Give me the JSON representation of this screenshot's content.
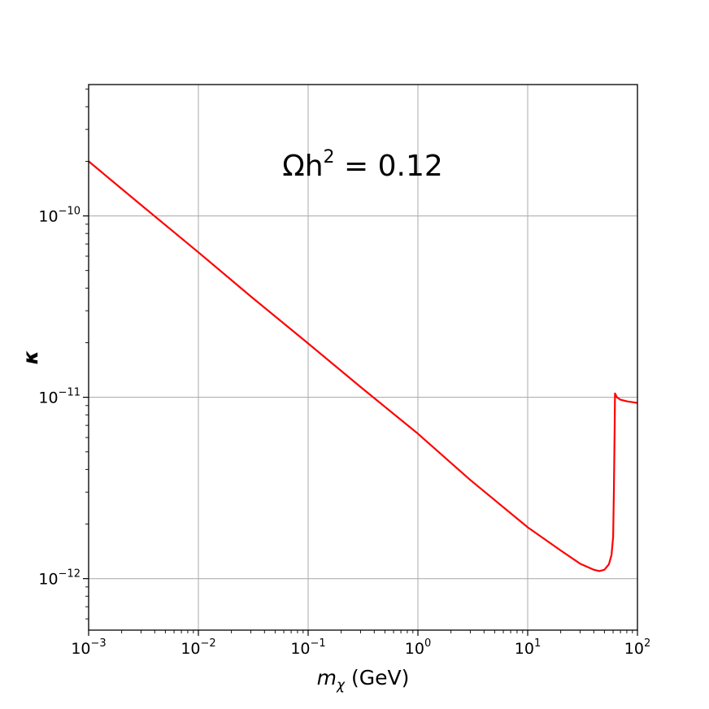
{
  "chart_data": {
    "type": "line",
    "xscale": "log",
    "yscale": "log",
    "xlim": [
      0.001,
      100
    ],
    "ylim": [
      5.2e-13,
      5.3e-10
    ],
    "grid": true,
    "line_color": "#ff0000",
    "grid_color": "#b0b0b0",
    "xlabel": {
      "base": "m",
      "sub": "χ",
      "unit": " (GeV)"
    },
    "ylabel": "κ",
    "annotation": {
      "lead": "Ωh",
      "sup": "2",
      "tail": " = 0.12"
    },
    "xticks": [
      {
        "value": 0.001,
        "base": "10",
        "exp": "−3"
      },
      {
        "value": 0.01,
        "base": "10",
        "exp": "−2"
      },
      {
        "value": 0.1,
        "base": "10",
        "exp": "−1"
      },
      {
        "value": 1,
        "base": "10",
        "exp": "0"
      },
      {
        "value": 10,
        "base": "10",
        "exp": "1"
      },
      {
        "value": 100,
        "base": "10",
        "exp": "2"
      }
    ],
    "yticks": [
      {
        "value": 1e-12,
        "base": "10",
        "exp": "−12"
      },
      {
        "value": 1e-11,
        "base": "10",
        "exp": "−11"
      },
      {
        "value": 1e-10,
        "base": "10",
        "exp": "−10"
      }
    ],
    "series": [
      {
        "x": [
          0.001,
          0.003,
          0.01,
          0.03,
          0.1,
          0.3,
          1,
          3,
          10,
          20,
          30,
          40,
          45,
          50,
          55,
          58,
          60,
          61,
          62,
          62.5,
          63,
          65,
          70,
          80,
          100
        ],
        "y": [
          2e-10,
          1.15e-10,
          6.3e-11,
          3.6e-11,
          1.98e-11,
          1.14e-11,
          6.3e-12,
          3.5e-12,
          1.92e-12,
          1.43e-12,
          1.21e-12,
          1.12e-12,
          1.1e-12,
          1.12e-12,
          1.2e-12,
          1.35e-12,
          1.7e-12,
          3e-12,
          7e-12,
          1.05e-11,
          1.04e-11,
          1e-11,
          9.7e-12,
          9.5e-12,
          9.3e-12
        ]
      }
    ]
  }
}
